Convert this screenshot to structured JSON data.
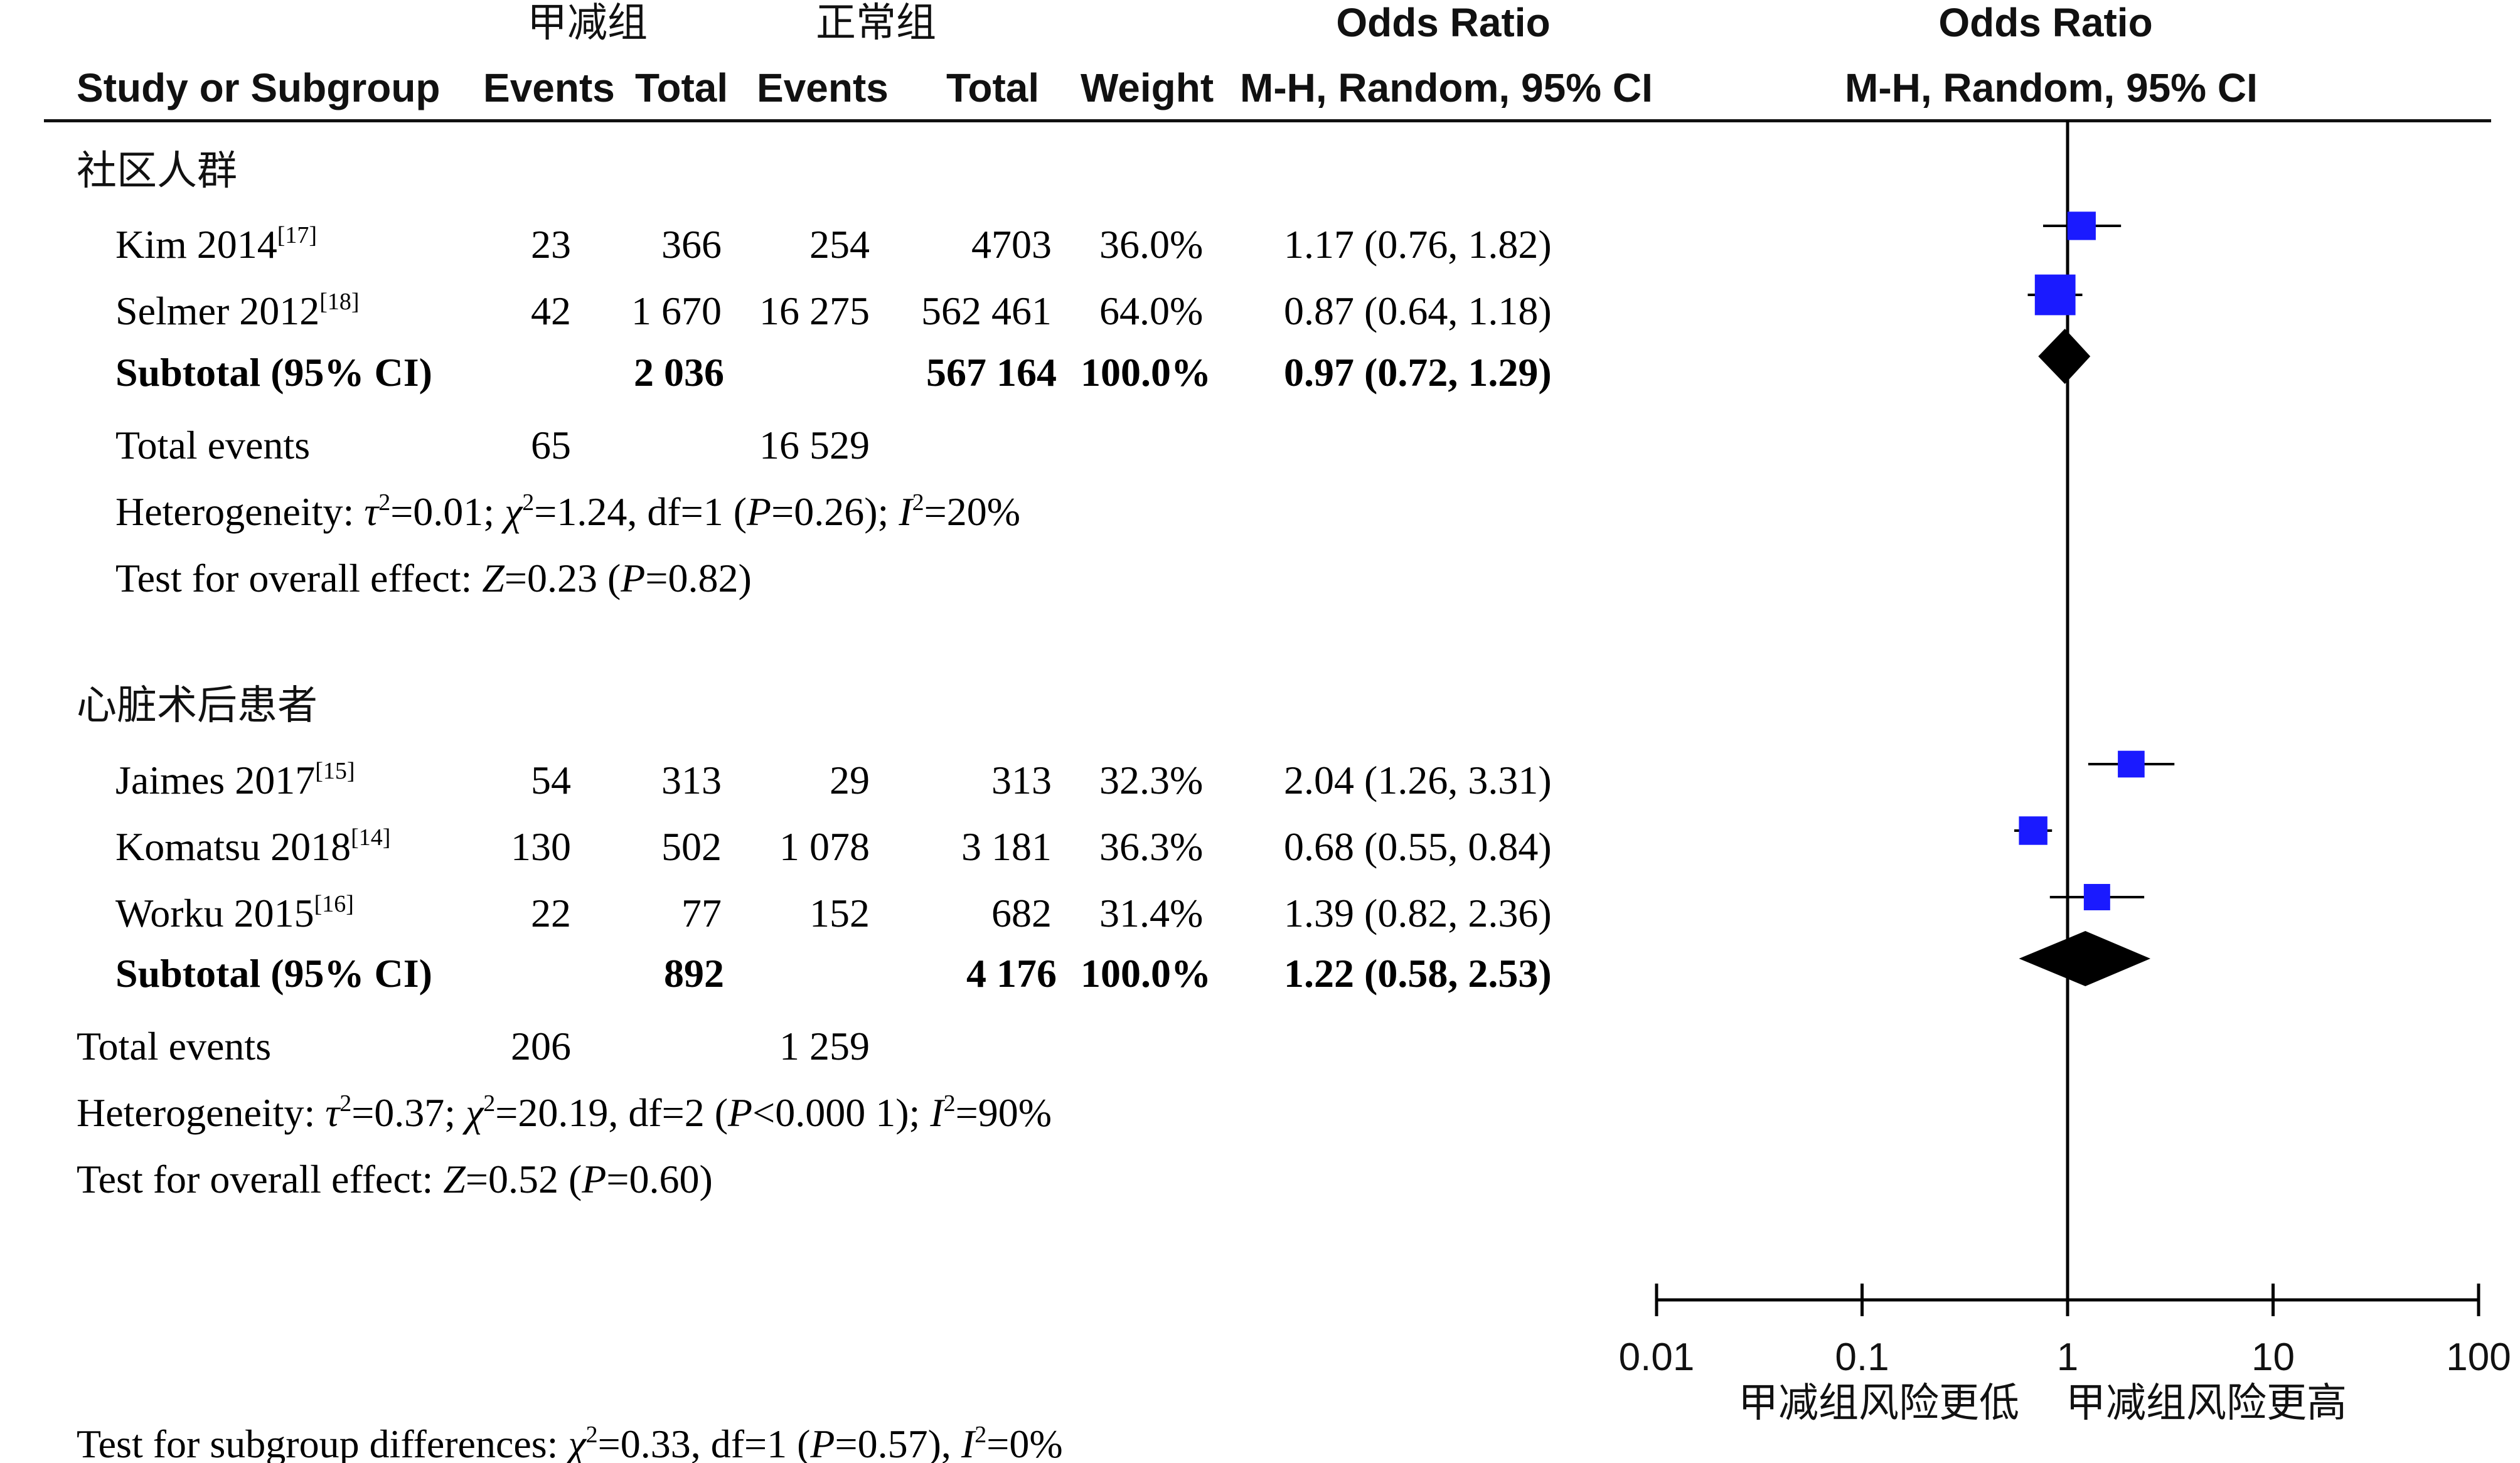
{
  "header": {
    "group_a": "甲减组",
    "group_b": "正常组",
    "or_left": "Odds Ratio",
    "or_right": "Odds Ratio",
    "col_study": "Study or Subgroup",
    "col_events_a": "Events",
    "col_total_a": "Total",
    "col_events_b": "Events",
    "col_total_b": "Total",
    "col_weight": "Weight",
    "col_ci_left": "M-H, Random, 95% CI",
    "col_ci_right": "M-H, Random, 95% CI"
  },
  "subgroups": [
    {
      "name": "社区人群",
      "studies": [
        {
          "study": "Kim 2014",
          "ref": "[17]",
          "events_a": "23",
          "total_a": "366",
          "events_b": "254",
          "total_b": "4703",
          "weight": "36.0%",
          "ci": "1.17 (0.76, 1.82)"
        },
        {
          "study": "Selmer 2012",
          "ref": "[18]",
          "events_a": "42",
          "total_a": "1 670",
          "events_b": "16 275",
          "total_b": "562 461",
          "weight": "64.0%",
          "ci": "0.87 (0.64, 1.18)"
        }
      ],
      "subtotal": {
        "label": "Subtotal (95% CI)",
        "total_a": "2 036",
        "total_b": "567 164",
        "weight": "100.0%",
        "ci": "0.97 (0.72, 1.29)"
      },
      "total_events": {
        "label": "Total events",
        "a": "65",
        "b": "16 529"
      },
      "heterogeneity": {
        "prefix": "Heterogeneity: ",
        "tau": "τ",
        "tau_val": "=0.01; ",
        "chi": "χ",
        "chi_val": "=1.24, df=1 (",
        "p": "P",
        "p_val": "=0.26); ",
        "i": "I",
        "i_val": "=20%"
      },
      "overall": {
        "prefix": "Test for overall effect: ",
        "z": "Z",
        "z_val": "=0.23 (",
        "p": "P",
        "p_val": "=0.82)"
      }
    },
    {
      "name": "心脏术后患者",
      "studies": [
        {
          "study": "Jaimes 2017",
          "ref": "[15]",
          "events_a": "54",
          "total_a": "313",
          "events_b": "29",
          "total_b": "313",
          "weight": "32.3%",
          "ci": "2.04 (1.26, 3.31)"
        },
        {
          "study": "Komatsu 2018",
          "ref": "[14]",
          "events_a": "130",
          "total_a": "502",
          "events_b": "1 078",
          "total_b": "3 181",
          "weight": "36.3%",
          "ci": "0.68 (0.55, 0.84)"
        },
        {
          "study": "Worku 2015",
          "ref": "[16]",
          "events_a": "22",
          "total_a": "77",
          "events_b": "152",
          "total_b": "682",
          "weight": "31.4%",
          "ci": "1.39 (0.82, 2.36)"
        }
      ],
      "subtotal": {
        "label": "Subtotal (95% CI)",
        "total_a": "892",
        "total_b": "4 176",
        "weight": "100.0%",
        "ci": "1.22 (0.58, 2.53)"
      },
      "total_events": {
        "label": "Total events",
        "a": "206",
        "b": "1 259"
      },
      "heterogeneity": {
        "prefix": "Heterogeneity: ",
        "tau": "τ",
        "tau_val": "=0.37; ",
        "chi": "χ",
        "chi_val": "=20.19, df=2 (",
        "p": "P",
        "p_val": "<0.000 1); ",
        "i": "I",
        "i_val": "=90%"
      },
      "overall": {
        "prefix": "Test for overall effect: ",
        "z": "Z",
        "z_val": "=0.52 (",
        "p": "P",
        "p_val": "=0.60)"
      }
    }
  ],
  "subgroup_diff": {
    "prefix": "Test for subgroup differences: ",
    "chi": "χ",
    "chi_val": "=0.33, df=1 (",
    "p": "P",
    "p_val": "=0.57), ",
    "i": "I",
    "i_val": "=0%"
  },
  "sq": "2",
  "axis": {
    "ticks": [
      "0.01",
      "0.1",
      "1",
      "10",
      "100"
    ],
    "favours_left": "甲减组风险更低",
    "favours_right": "甲减组风险更高"
  },
  "colors": {
    "square": "#1a1aff",
    "diamond": "#000000",
    "line": "#000000"
  },
  "chart_data": {
    "type": "forest",
    "x_scale": "log",
    "xlim": [
      0.01,
      100
    ],
    "xticks": [
      0.01,
      0.1,
      1,
      10,
      100
    ],
    "reference_line": 1,
    "series": [
      {
        "name": "Kim 2014",
        "or": 1.17,
        "lower": 0.76,
        "upper": 1.82,
        "weight": 36.0,
        "marker": "square"
      },
      {
        "name": "Selmer 2012",
        "or": 0.87,
        "lower": 0.64,
        "upper": 1.18,
        "weight": 64.0,
        "marker": "square"
      },
      {
        "name": "Subtotal (95% CI)",
        "or": 0.97,
        "lower": 0.72,
        "upper": 1.29,
        "marker": "diamond"
      },
      {
        "name": "Jaimes 2017",
        "or": 2.04,
        "lower": 1.26,
        "upper": 3.31,
        "weight": 32.3,
        "marker": "square"
      },
      {
        "name": "Komatsu 2018",
        "or": 0.68,
        "lower": 0.55,
        "upper": 0.84,
        "weight": 36.3,
        "marker": "square"
      },
      {
        "name": "Worku 2015",
        "or": 1.39,
        "lower": 0.82,
        "upper": 2.36,
        "weight": 31.4,
        "marker": "square"
      },
      {
        "name": "Subtotal (95% CI)",
        "or": 1.22,
        "lower": 0.58,
        "upper": 2.53,
        "marker": "diamond"
      }
    ]
  }
}
